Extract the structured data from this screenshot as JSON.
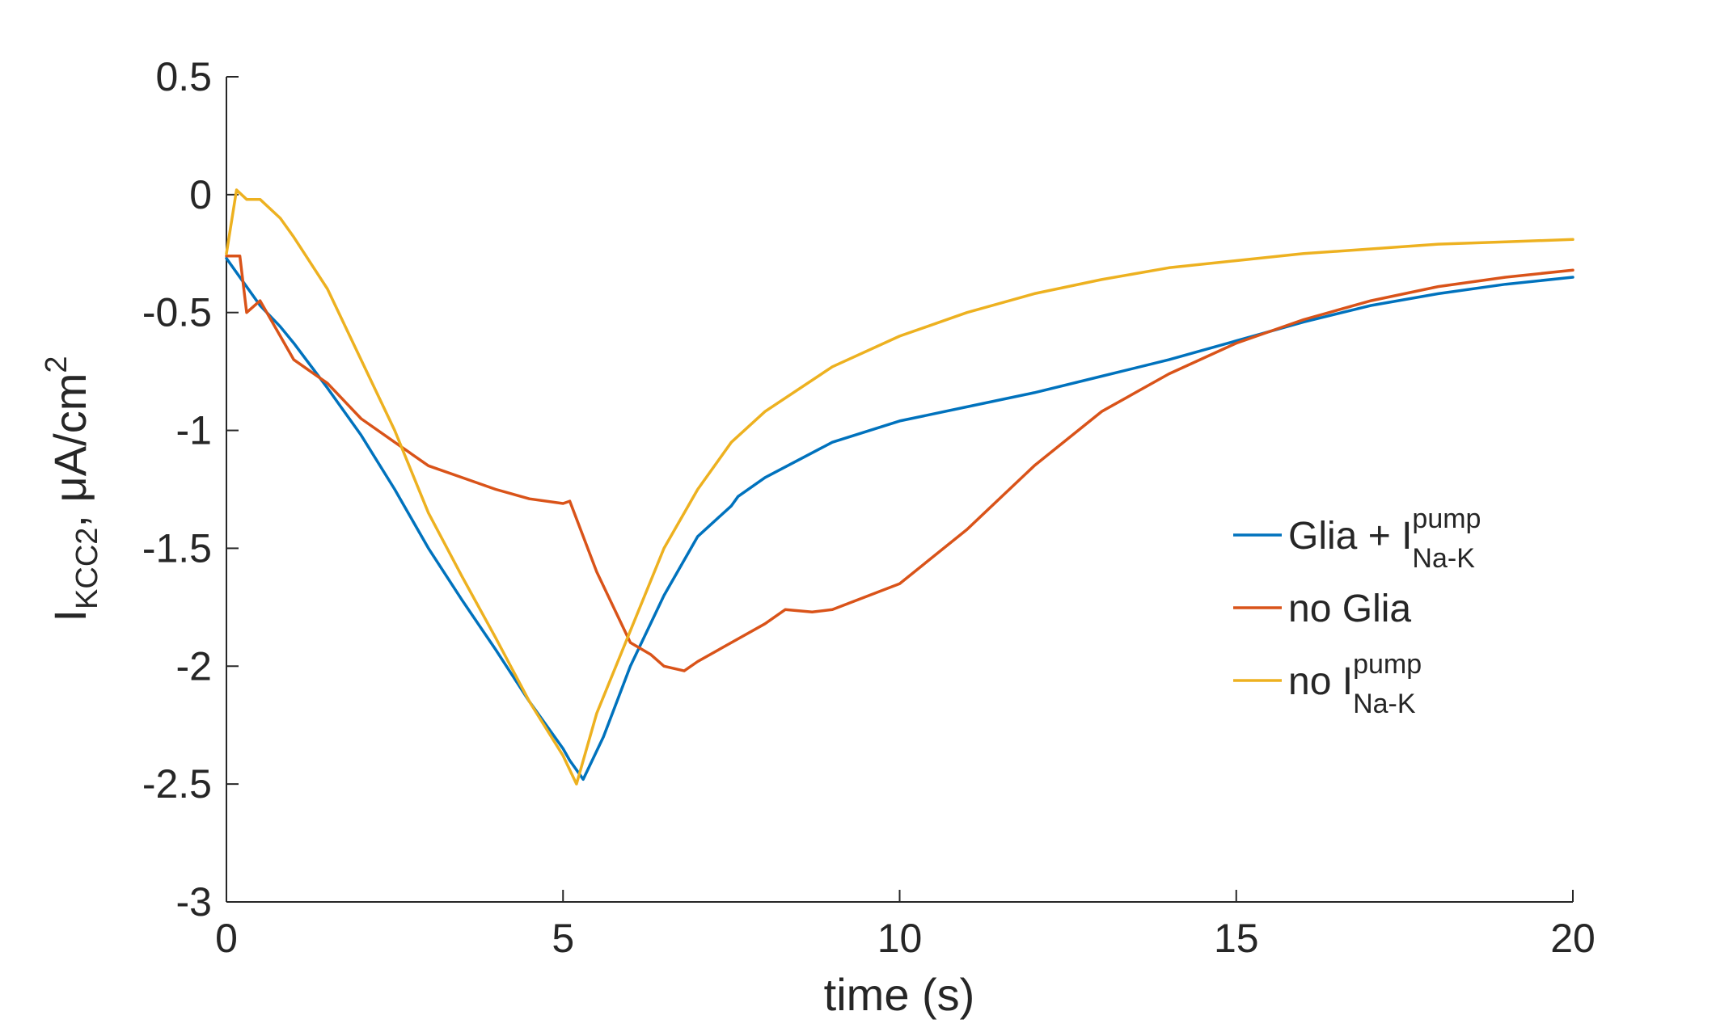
{
  "chart_data": {
    "type": "line",
    "title": "",
    "xlabel": "time (s)",
    "ylabel": {
      "main": "I",
      "subscript": "KCC2",
      "rest": ", μA/cm",
      "superscript": "2"
    },
    "xlim": [
      0,
      20
    ],
    "ylim": [
      -3,
      0.5
    ],
    "xticks": [
      "0",
      "5",
      "10",
      "15",
      "20"
    ],
    "yticks": [
      "0.5",
      "0",
      "-0.5",
      "-1",
      "-1.5",
      "-2",
      "-2.5",
      "-3"
    ],
    "grid": false,
    "legend_position": "right",
    "series": [
      {
        "label": {
          "text": "Glia + I",
          "sup": "pump",
          "sub": "Na-K"
        },
        "color": "#0072BD",
        "x": [
          0,
          0.2,
          0.5,
          0.8,
          1.0,
          1.5,
          2.0,
          2.5,
          3.0,
          3.5,
          4.0,
          4.5,
          5.0,
          5.1,
          5.3,
          5.6,
          6.0,
          6.5,
          7.0,
          7.5,
          7.6,
          8.0,
          9.0,
          10.0,
          11.0,
          12.0,
          13.0,
          14.0,
          15.0,
          16.0,
          17.0,
          18.0,
          19.0,
          20.0
        ],
        "y": [
          -0.27,
          -0.35,
          -0.47,
          -0.56,
          -0.63,
          -0.82,
          -1.02,
          -1.25,
          -1.5,
          -1.72,
          -1.93,
          -2.15,
          -2.35,
          -2.4,
          -2.48,
          -2.3,
          -2.0,
          -1.7,
          -1.45,
          -1.32,
          -1.28,
          -1.2,
          -1.05,
          -0.96,
          -0.9,
          -0.84,
          -0.77,
          -0.7,
          -0.62,
          -0.54,
          -0.47,
          -0.42,
          -0.38,
          -0.35
        ]
      },
      {
        "label": {
          "text": "no Glia"
        },
        "color": "#D95319",
        "x": [
          0,
          0.2,
          0.3,
          0.5,
          0.8,
          1.0,
          1.5,
          2.0,
          2.5,
          3.0,
          3.5,
          4.0,
          4.5,
          5.0,
          5.1,
          5.5,
          6.0,
          6.3,
          6.5,
          6.8,
          7.0,
          7.5,
          8.0,
          8.3,
          8.7,
          9.0,
          10.0,
          11.0,
          12.0,
          13.0,
          14.0,
          15.0,
          16.0,
          17.0,
          18.0,
          19.0,
          20.0
        ],
        "y": [
          -0.26,
          -0.26,
          -0.5,
          -0.45,
          -0.6,
          -0.7,
          -0.8,
          -0.95,
          -1.05,
          -1.15,
          -1.2,
          -1.25,
          -1.29,
          -1.31,
          -1.3,
          -1.6,
          -1.9,
          -1.95,
          -2.0,
          -2.02,
          -1.98,
          -1.9,
          -1.82,
          -1.76,
          -1.77,
          -1.76,
          -1.65,
          -1.42,
          -1.15,
          -0.92,
          -0.76,
          -0.63,
          -0.53,
          -0.45,
          -0.39,
          -0.35,
          -0.32
        ]
      },
      {
        "label": {
          "text": "no I",
          "sup": "pump",
          "sub": "Na-K"
        },
        "color": "#EDB120",
        "x": [
          0,
          0.15,
          0.3,
          0.5,
          0.8,
          1.0,
          1.5,
          2.0,
          2.5,
          3.0,
          3.5,
          4.0,
          4.5,
          5.0,
          5.2,
          5.5,
          6.0,
          6.5,
          7.0,
          7.5,
          8.0,
          9.0,
          10.0,
          11.0,
          12.0,
          13.0,
          14.0,
          15.0,
          16.0,
          17.0,
          18.0,
          19.0,
          20.0
        ],
        "y": [
          -0.25,
          0.02,
          -0.02,
          -0.02,
          -0.1,
          -0.18,
          -0.4,
          -0.7,
          -1.0,
          -1.35,
          -1.62,
          -1.88,
          -2.15,
          -2.38,
          -2.5,
          -2.2,
          -1.85,
          -1.5,
          -1.25,
          -1.05,
          -0.92,
          -0.73,
          -0.6,
          -0.5,
          -0.42,
          -0.36,
          -0.31,
          -0.28,
          -0.25,
          -0.23,
          -0.21,
          -0.2,
          -0.19
        ]
      }
    ]
  }
}
